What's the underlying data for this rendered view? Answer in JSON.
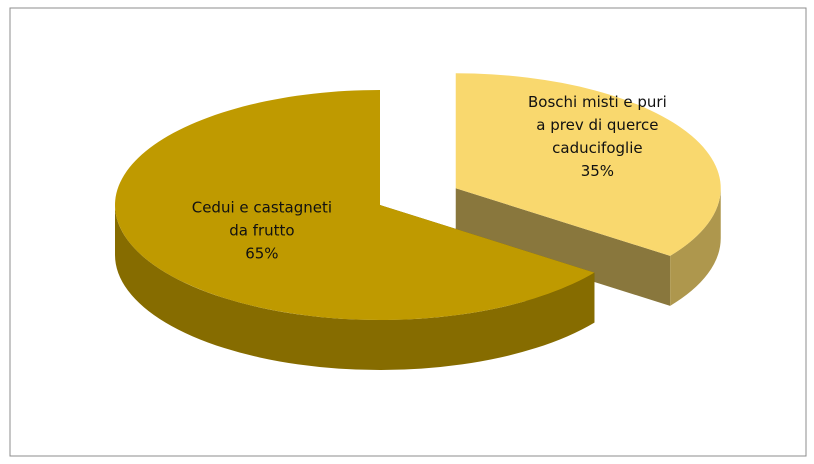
{
  "chart_data": {
    "type": "pie",
    "categories": [
      "Boschi misti e puri a prev di querce caducifoglie",
      "Cedui e castagneti da frutto"
    ],
    "values": [
      35,
      65
    ],
    "value_labels": [
      "35%",
      "65%"
    ],
    "colors": [
      "#f9d86e",
      "#bf9a00"
    ]
  }
}
